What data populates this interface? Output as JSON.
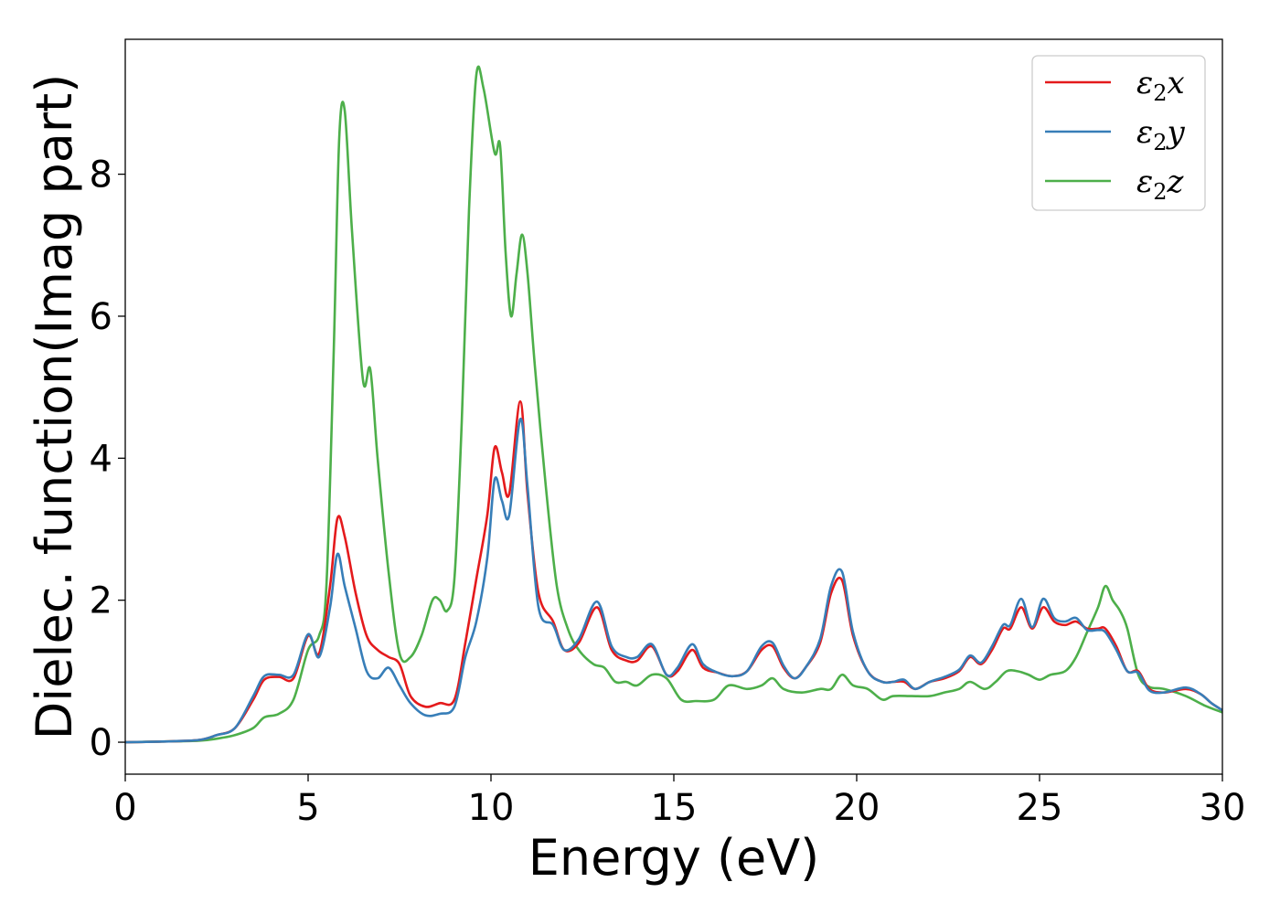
{
  "chart_data": {
    "type": "line",
    "xlabel": "Energy (eV)",
    "ylabel": "Dielec. function(Imag part)",
    "xlim": [
      0,
      30
    ],
    "ylim": [
      -0.45,
      9.9
    ],
    "xticks": [
      0,
      5,
      10,
      15,
      20,
      25,
      30
    ],
    "xtick_labels": [
      "0",
      "5",
      "10",
      "15",
      "20",
      "25",
      "30"
    ],
    "yticks": [
      0,
      2,
      4,
      6,
      8
    ],
    "ytick_labels": [
      "0",
      "2",
      "4",
      "6",
      "8"
    ],
    "grid": false,
    "legend_position": "top-right",
    "series": [
      {
        "name": "ε2x",
        "legend_base": "ε",
        "legend_sub": "2",
        "legend_suffix": "x",
        "color": "#e41a1c",
        "x": [
          0,
          1,
          2,
          2.5,
          3,
          3.5,
          3.8,
          4.2,
          4.6,
          5,
          5.3,
          5.6,
          5.8,
          6,
          6.3,
          6.6,
          6.9,
          7.2,
          7.5,
          7.8,
          8.2,
          8.6,
          9,
          9.3,
          9.6,
          9.9,
          10.1,
          10.3,
          10.5,
          10.8,
          11,
          11.3,
          11.7,
          12,
          12.4,
          12.9,
          13.3,
          13.7,
          14,
          14.4,
          14.8,
          15.1,
          15.5,
          15.8,
          16.2,
          16.6,
          17,
          17.4,
          17.7,
          18,
          18.3,
          18.6,
          19,
          19.3,
          19.6,
          19.9,
          20.3,
          20.7,
          21,
          21.3,
          21.6,
          22,
          22.4,
          22.8,
          23.1,
          23.4,
          23.7,
          24,
          24.2,
          24.5,
          24.8,
          25.1,
          25.4,
          25.7,
          26,
          26.3,
          26.6,
          26.8,
          27.1,
          27.4,
          27.7,
          28,
          28.4,
          29,
          29.4,
          29.7,
          30
        ],
        "y": [
          0,
          0.01,
          0.03,
          0.1,
          0.2,
          0.6,
          0.88,
          0.92,
          0.9,
          1.5,
          1.25,
          2.2,
          3.15,
          2.9,
          2.1,
          1.5,
          1.3,
          1.2,
          1.1,
          0.65,
          0.5,
          0.55,
          0.6,
          1.4,
          2.3,
          3.2,
          4.15,
          3.8,
          3.5,
          4.8,
          3.5,
          2.1,
          1.7,
          1.3,
          1.4,
          1.9,
          1.3,
          1.15,
          1.15,
          1.35,
          0.95,
          1,
          1.3,
          1.05,
          0.98,
          0.93,
          1,
          1.3,
          1.35,
          1.05,
          0.9,
          1.05,
          1.4,
          2.1,
          2.28,
          1.5,
          1,
          0.85,
          0.85,
          0.85,
          0.75,
          0.85,
          0.9,
          1,
          1.2,
          1.1,
          1.3,
          1.6,
          1.6,
          1.9,
          1.6,
          1.9,
          1.7,
          1.65,
          1.7,
          1.6,
          1.6,
          1.6,
          1.35,
          1,
          1,
          0.75,
          0.7,
          0.75,
          0.68,
          0.55,
          0.45
        ]
      },
      {
        "name": "ε2y",
        "legend_base": "ε",
        "legend_sub": "2",
        "legend_suffix": "y",
        "color": "#377eb8",
        "x": [
          0,
          1,
          2,
          2.5,
          3,
          3.5,
          3.8,
          4.2,
          4.6,
          5,
          5.3,
          5.6,
          5.8,
          6,
          6.3,
          6.6,
          6.9,
          7.2,
          7.5,
          7.8,
          8.2,
          8.6,
          9,
          9.3,
          9.6,
          9.9,
          10.1,
          10.3,
          10.5,
          10.8,
          11,
          11.3,
          11.7,
          12,
          12.4,
          12.9,
          13.3,
          13.7,
          14,
          14.4,
          14.8,
          15.1,
          15.5,
          15.8,
          16.2,
          16.6,
          17,
          17.4,
          17.7,
          18,
          18.3,
          18.6,
          19,
          19.3,
          19.6,
          19.9,
          20.3,
          20.7,
          21,
          21.3,
          21.6,
          22,
          22.4,
          22.8,
          23.1,
          23.4,
          23.7,
          24,
          24.2,
          24.5,
          24.8,
          25.1,
          25.4,
          25.7,
          26,
          26.3,
          26.6,
          26.8,
          27.1,
          27.4,
          27.7,
          28,
          28.4,
          29,
          29.4,
          29.7,
          30
        ],
        "y": [
          0,
          0.01,
          0.03,
          0.1,
          0.2,
          0.65,
          0.93,
          0.95,
          0.95,
          1.52,
          1.2,
          1.9,
          2.65,
          2.2,
          1.6,
          1.0,
          0.9,
          1.05,
          0.8,
          0.55,
          0.38,
          0.4,
          0.5,
          1.2,
          1.7,
          2.6,
          3.7,
          3.4,
          3.2,
          4.55,
          3.6,
          1.9,
          1.65,
          1.3,
          1.45,
          1.98,
          1.35,
          1.2,
          1.2,
          1.38,
          0.95,
          1.05,
          1.38,
          1.1,
          0.98,
          0.93,
          1,
          1.35,
          1.4,
          1.08,
          0.9,
          1.05,
          1.45,
          2.2,
          2.4,
          1.55,
          1.0,
          0.85,
          0.85,
          0.88,
          0.75,
          0.85,
          0.92,
          1.02,
          1.22,
          1.12,
          1.35,
          1.65,
          1.65,
          2.02,
          1.62,
          2.02,
          1.75,
          1.7,
          1.75,
          1.58,
          1.58,
          1.55,
          1.3,
          1,
          0.98,
          0.73,
          0.7,
          0.77,
          0.68,
          0.55,
          0.45
        ]
      },
      {
        "name": "ε2z",
        "legend_base": "ε",
        "legend_sub": "2",
        "legend_suffix": "z",
        "color": "#4daf4a",
        "x": [
          0,
          1,
          2,
          2.5,
          3,
          3.5,
          3.8,
          4.2,
          4.6,
          5,
          5.3,
          5.5,
          5.7,
          5.85,
          6,
          6.2,
          6.5,
          6.7,
          6.9,
          7.2,
          7.5,
          7.8,
          8.1,
          8.4,
          8.6,
          8.8,
          9,
          9.2,
          9.4,
          9.6,
          9.8,
          10.1,
          10.25,
          10.4,
          10.55,
          10.7,
          10.85,
          11,
          11.2,
          11.5,
          11.8,
          12.1,
          12.4,
          12.8,
          13.1,
          13.4,
          13.7,
          14,
          14.4,
          14.8,
          15.2,
          15.6,
          16.1,
          16.5,
          17,
          17.4,
          17.7,
          18,
          18.5,
          19,
          19.3,
          19.6,
          19.9,
          20.3,
          20.7,
          21,
          21.5,
          22,
          22.4,
          22.8,
          23.1,
          23.5,
          23.8,
          24.1,
          24.4,
          24.7,
          25,
          25.3,
          25.7,
          26,
          26.3,
          26.6,
          26.8,
          27,
          27.2,
          27.4,
          27.7,
          28,
          28.4,
          29,
          29.5,
          30
        ],
        "y": [
          0,
          0.01,
          0.02,
          0.05,
          0.1,
          0.2,
          0.35,
          0.4,
          0.6,
          1.3,
          1.5,
          2.2,
          5.5,
          8.5,
          8.9,
          7.2,
          5.1,
          5.25,
          4.0,
          2.4,
          1.25,
          1.2,
          1.5,
          2.0,
          2.0,
          1.85,
          2.3,
          4.5,
          7.5,
          9.4,
          9.2,
          8.3,
          8.4,
          6.9,
          6.0,
          6.6,
          7.15,
          6.6,
          5.3,
          3.6,
          2.2,
          1.6,
          1.3,
          1.1,
          1.05,
          0.85,
          0.85,
          0.8,
          0.95,
          0.9,
          0.6,
          0.58,
          0.6,
          0.8,
          0.75,
          0.8,
          0.9,
          0.75,
          0.7,
          0.75,
          0.75,
          0.95,
          0.8,
          0.75,
          0.6,
          0.65,
          0.65,
          0.65,
          0.7,
          0.75,
          0.85,
          0.75,
          0.85,
          1.0,
          1.0,
          0.95,
          0.88,
          0.95,
          1.0,
          1.2,
          1.55,
          1.9,
          2.2,
          2.0,
          1.85,
          1.6,
          0.95,
          0.78,
          0.75,
          0.65,
          0.52,
          0.42
        ]
      }
    ]
  }
}
